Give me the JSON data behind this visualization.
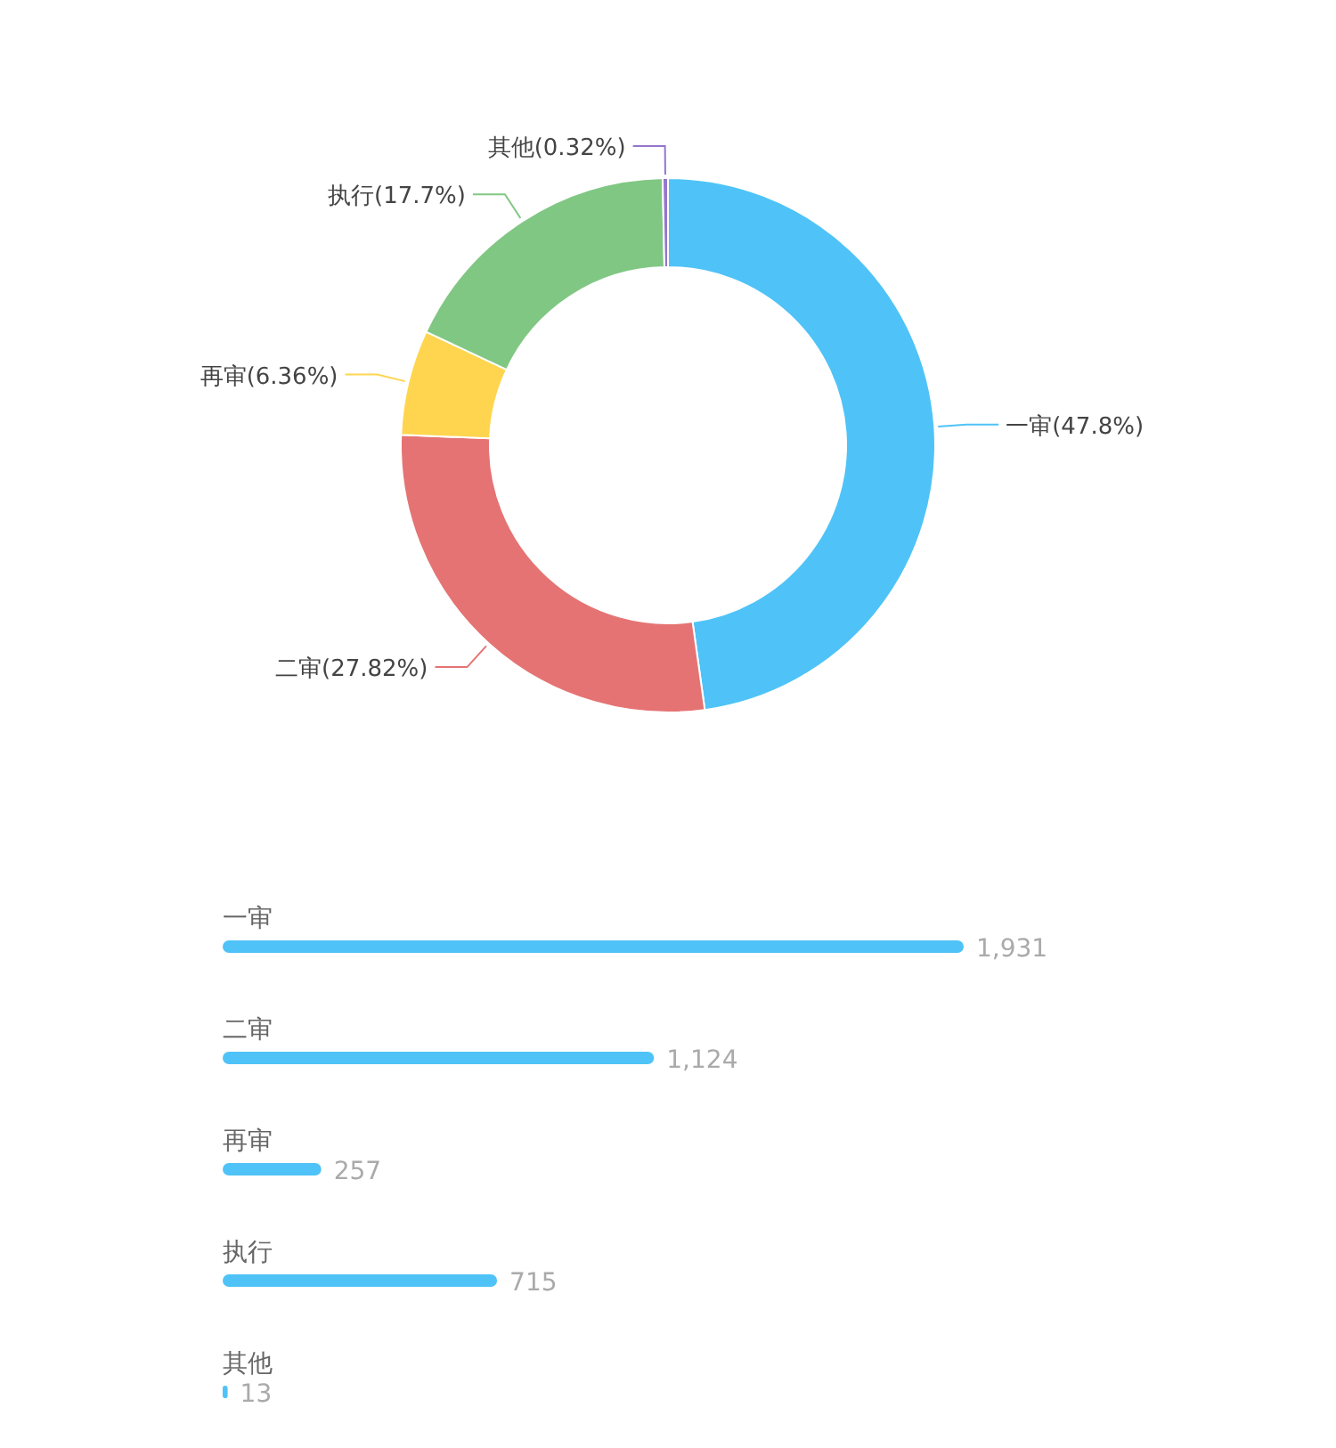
{
  "chart_data": [
    {
      "type": "donut",
      "categories": [
        "一审",
        "二审",
        "再审",
        "执行",
        "其他"
      ],
      "values": [
        47.8,
        27.82,
        6.36,
        17.7,
        0.32
      ],
      "colors": [
        "#4fc3f7",
        "#e57373",
        "#ffd54f",
        "#81c784",
        "#9575cd"
      ],
      "value_labels": [
        "(47.8%)",
        "(27.82%)",
        "(6.36%)",
        "(17.7%)",
        "(0.32%)"
      ]
    },
    {
      "type": "bar",
      "orientation": "horizontal",
      "categories": [
        "一审",
        "二审",
        "再审",
        "执行",
        "其他"
      ],
      "values": [
        1931,
        1124,
        257,
        715,
        13
      ],
      "color": "#4fc3f7",
      "value_labels": [
        "1,931",
        "1,124",
        "257",
        "715",
        "13"
      ]
    }
  ]
}
